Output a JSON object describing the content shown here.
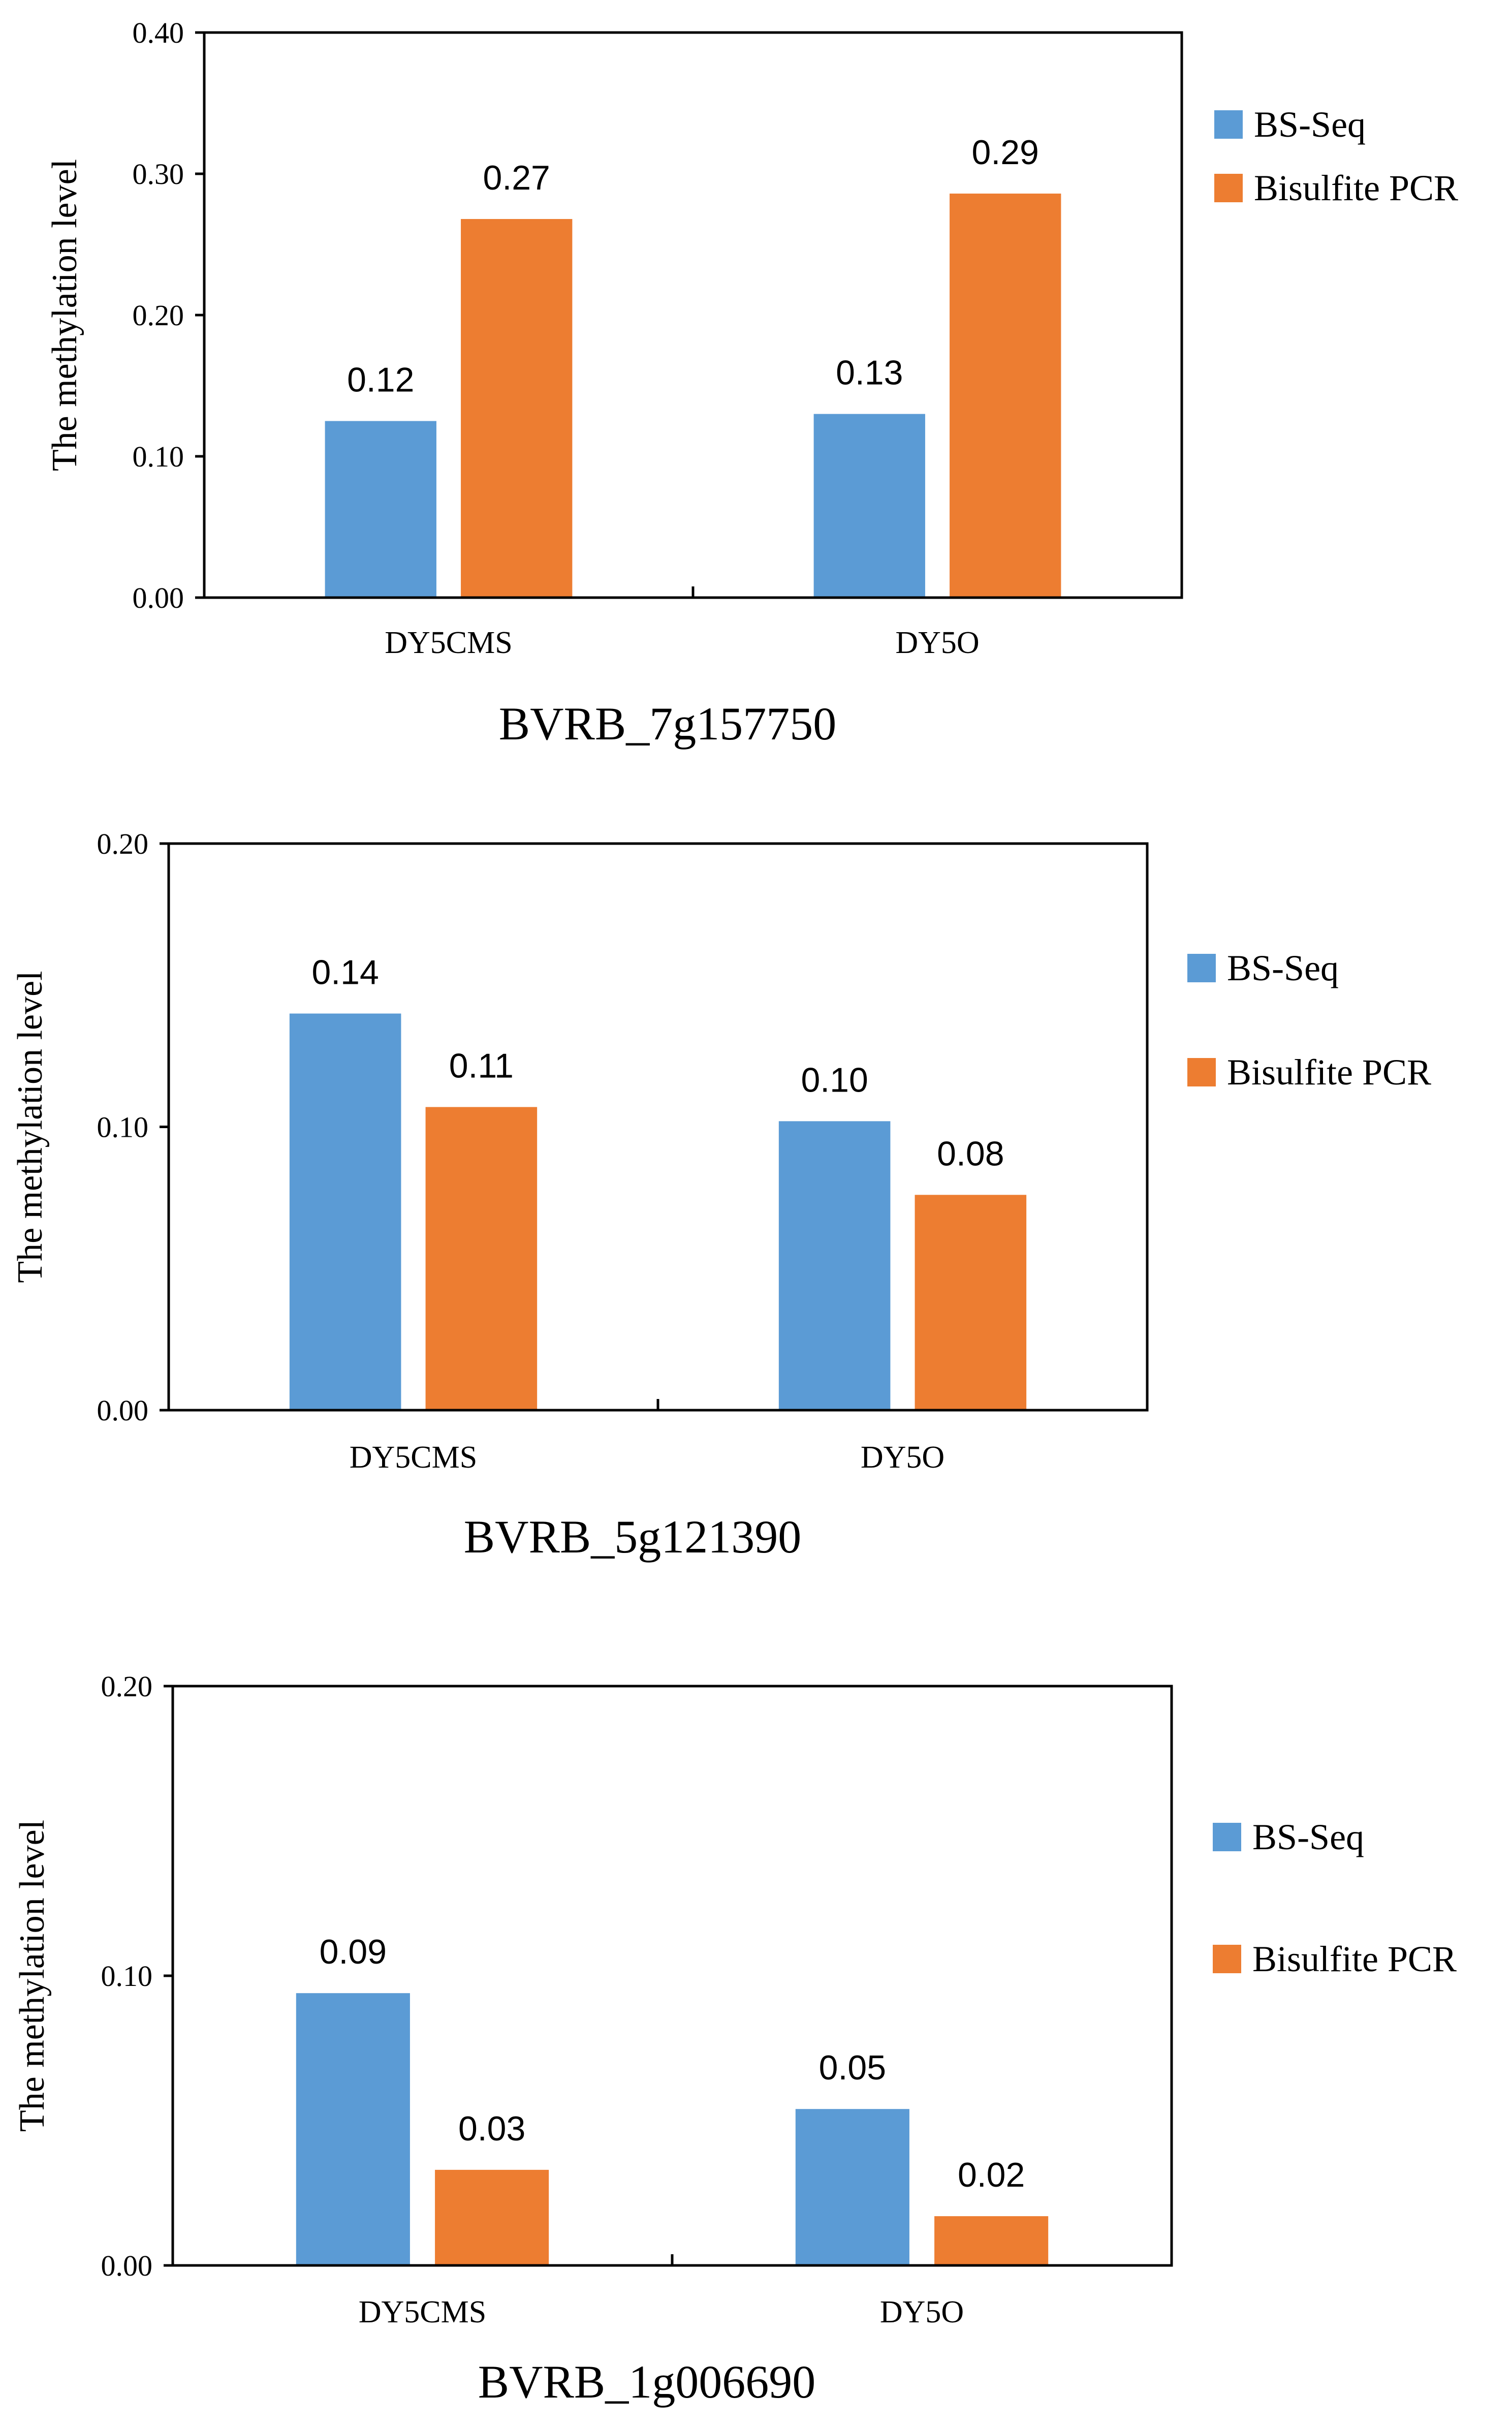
{
  "colors": {
    "bs_seq": "#5B9BD5",
    "bisulfite_pcr": "#ED7D31"
  },
  "chart_data": [
    {
      "type": "bar",
      "title": "BVRB_7g157750",
      "xlabel": "",
      "ylabel": "The methylation  level",
      "categories": [
        "DY5CMS",
        "DY5O"
      ],
      "series": [
        {
          "name": "BS-Seq",
          "values": [
            0.125,
            0.13
          ],
          "labels": [
            "0.12",
            "0.13"
          ]
        },
        {
          "name": "Bisulfite PCR",
          "values": [
            0.268,
            0.286
          ],
          "labels": [
            "0.27",
            "0.29"
          ]
        }
      ],
      "ylim": [
        0,
        0.4
      ],
      "yticks": [
        0,
        0.1,
        0.2,
        0.3,
        0.4
      ],
      "yticklabels": [
        "0.00",
        "0.10",
        "0.20",
        "0.30",
        "0.40"
      ],
      "legend": "right",
      "grid": false
    },
    {
      "type": "bar",
      "title": "BVRB_5g121390",
      "xlabel": "",
      "ylabel": "The methylation  level",
      "categories": [
        "DY5CMS",
        "DY5O"
      ],
      "series": [
        {
          "name": "BS-Seq",
          "values": [
            0.14,
            0.102
          ],
          "labels": [
            "0.14",
            "0.10"
          ]
        },
        {
          "name": "Bisulfite PCR",
          "values": [
            0.107,
            0.076
          ],
          "labels": [
            "0.11",
            "0.08"
          ]
        }
      ],
      "ylim": [
        0,
        0.2
      ],
      "yticks": [
        0,
        0.1,
        0.2
      ],
      "yticklabels": [
        "0.00",
        "0.10",
        "0.20"
      ],
      "legend": "right",
      "grid": false
    },
    {
      "type": "bar",
      "title": "BVRB_1g006690",
      "xlabel": "",
      "ylabel": "The methylation  level",
      "categories": [
        "DY5CMS",
        "DY5O"
      ],
      "series": [
        {
          "name": "BS-Seq",
          "values": [
            0.094,
            0.054
          ],
          "labels": [
            "0.09",
            "0.05"
          ]
        },
        {
          "name": "Bisulfite PCR",
          "values": [
            0.033,
            0.017
          ],
          "labels": [
            "0.03",
            "0.02"
          ]
        }
      ],
      "ylim": [
        0,
        0.2
      ],
      "yticks": [
        0,
        0.1,
        0.2
      ],
      "yticklabels": [
        "0.00",
        "0.10",
        "0.20"
      ],
      "legend": "right",
      "grid": false
    }
  ]
}
